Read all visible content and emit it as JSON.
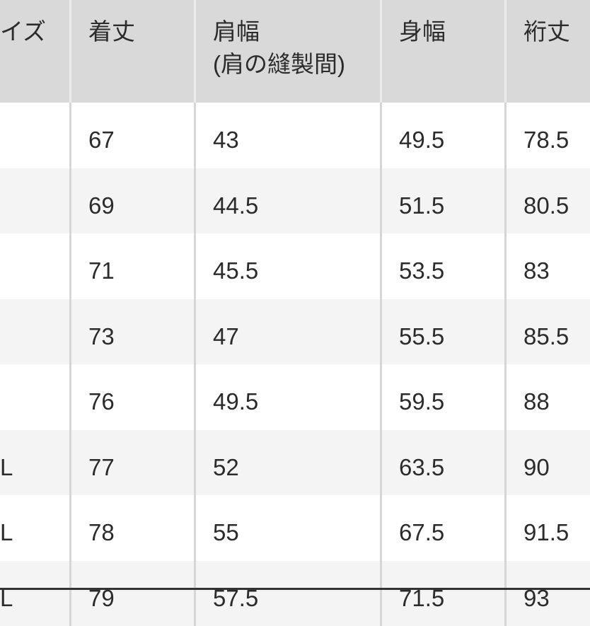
{
  "table": {
    "headers": [
      "イズ",
      "着丈",
      "肩幅",
      "身幅",
      "裄丈"
    ],
    "header_sub": "(肩の縫製間)",
    "rows": [
      [
        "",
        "67",
        "43",
        "49.5",
        "78.5"
      ],
      [
        "",
        "69",
        "44.5",
        "51.5",
        "80.5"
      ],
      [
        "",
        "71",
        "45.5",
        "53.5",
        "83"
      ],
      [
        "",
        "73",
        "47",
        "55.5",
        "85.5"
      ],
      [
        "",
        "76",
        "49.5",
        "59.5",
        "88"
      ],
      [
        "L",
        "77",
        "52",
        "63.5",
        "90"
      ],
      [
        "L",
        "78",
        "55",
        "67.5",
        "91.5"
      ],
      [
        "L",
        "79",
        "57.5",
        "71.5",
        "93"
      ]
    ]
  },
  "colors": {
    "header_bg": "#d9d9d9",
    "alt_row_bg": "#f4f4f4",
    "text": "#2b2b2b"
  }
}
